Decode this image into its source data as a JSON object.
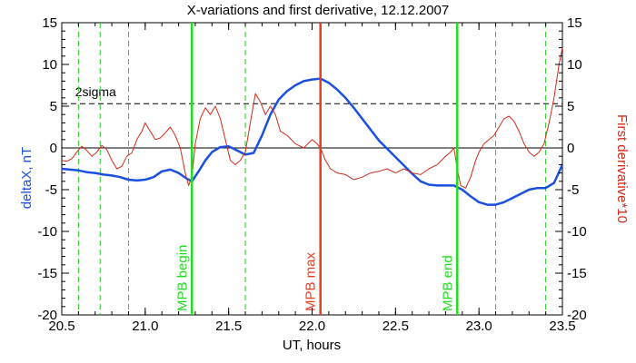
{
  "chart_data": {
    "type": "line",
    "title": "X-variations and first derivative, 12.12.2007",
    "xlabel": "UT, hours",
    "ylabel_left": "deltaX, nT",
    "ylabel_right": "First derivative*10",
    "xlim": [
      20.5,
      23.5
    ],
    "ylim_left": [
      -20,
      15
    ],
    "ylim_right": [
      -20,
      15
    ],
    "xticks": [
      "20.5",
      "21.0",
      "21.5",
      "22.0",
      "22.5",
      "23.0",
      "23.5"
    ],
    "yticks_left": [
      "-20",
      "-15",
      "-10",
      "-5",
      "0",
      "5",
      "10",
      "15"
    ],
    "yticks_right": [
      "-20",
      "-15",
      "-10",
      "-5",
      "0",
      "5",
      "10",
      "15"
    ],
    "colors": {
      "deltaX": "#1a4fe0",
      "derivative": "#d42a1a",
      "mpb": "#22dd22",
      "mpb_max": "#e83c1c",
      "dashed_green": "#22cc22"
    },
    "sigma": {
      "label": "2sigma",
      "value": 5.3
    },
    "markers": [
      {
        "label": "MPB begin",
        "x": 21.28,
        "color": "#22dd22"
      },
      {
        "label": "MPB max",
        "x": 22.05,
        "color": "#e83c1c"
      },
      {
        "label": "MPB end",
        "x": 22.87,
        "color": "#22dd22"
      }
    ],
    "dashed_lines_x": [
      20.6,
      20.73,
      20.9,
      21.6,
      23.1,
      23.4
    ],
    "series": [
      {
        "key": "deltaX",
        "axis": "left",
        "x": [
          20.5,
          20.55,
          20.6,
          20.65,
          20.7,
          20.75,
          20.8,
          20.85,
          20.9,
          20.95,
          21.0,
          21.05,
          21.1,
          21.15,
          21.2,
          21.25,
          21.28,
          21.32,
          21.36,
          21.4,
          21.45,
          21.5,
          21.55,
          21.6,
          21.65,
          21.7,
          21.75,
          21.8,
          21.85,
          21.9,
          21.95,
          22.0,
          22.05,
          22.1,
          22.15,
          22.2,
          22.25,
          22.3,
          22.35,
          22.4,
          22.45,
          22.5,
          22.55,
          22.6,
          22.65,
          22.7,
          22.75,
          22.8,
          22.85,
          22.9,
          22.95,
          23.0,
          23.05,
          23.1,
          23.15,
          23.2,
          23.25,
          23.3,
          23.35,
          23.4,
          23.45,
          23.5
        ],
        "y": [
          -2.5,
          -2.6,
          -2.7,
          -2.9,
          -3.0,
          -3.2,
          -3.3,
          -3.5,
          -3.8,
          -3.9,
          -3.8,
          -3.5,
          -2.8,
          -2.6,
          -3.0,
          -3.7,
          -4.0,
          -2.8,
          -1.5,
          -0.5,
          0.1,
          0.2,
          -0.3,
          -0.8,
          -0.6,
          1.5,
          4.0,
          5.8,
          6.8,
          7.5,
          8.0,
          8.2,
          8.3,
          7.8,
          7.0,
          6.0,
          4.8,
          3.5,
          2.2,
          0.9,
          -0.1,
          -1.1,
          -2.1,
          -3.1,
          -4.0,
          -4.4,
          -4.5,
          -4.5,
          -4.5,
          -5.0,
          -5.8,
          -6.5,
          -6.8,
          -6.8,
          -6.5,
          -6.0,
          -5.5,
          -5.0,
          -4.8,
          -4.8,
          -4.2,
          -2.0
        ]
      },
      {
        "key": "derivative",
        "axis": "right",
        "x": [
          20.5,
          20.53,
          20.56,
          20.59,
          20.62,
          20.65,
          20.68,
          20.71,
          20.74,
          20.77,
          20.8,
          20.83,
          20.86,
          20.89,
          20.92,
          20.95,
          20.98,
          21.0,
          21.03,
          21.06,
          21.09,
          21.12,
          21.15,
          21.18,
          21.21,
          21.24,
          21.26,
          21.28,
          21.3,
          21.33,
          21.36,
          21.39,
          21.42,
          21.45,
          21.48,
          21.51,
          21.54,
          21.57,
          21.6,
          21.63,
          21.66,
          21.69,
          21.72,
          21.75,
          21.78,
          21.81,
          21.85,
          21.9,
          21.95,
          22.0,
          22.03,
          22.05,
          22.08,
          22.11,
          22.15,
          22.2,
          22.25,
          22.3,
          22.35,
          22.4,
          22.45,
          22.5,
          22.55,
          22.6,
          22.65,
          22.7,
          22.75,
          22.8,
          22.83,
          22.85,
          22.87,
          22.89,
          22.92,
          22.95,
          22.98,
          23.0,
          23.03,
          23.06,
          23.09,
          23.12,
          23.15,
          23.18,
          23.21,
          23.24,
          23.27,
          23.3,
          23.33,
          23.36,
          23.39,
          23.42,
          23.45,
          23.48,
          23.5
        ],
        "y": [
          -1.5,
          -1.6,
          -1.3,
          -0.5,
          0.2,
          -0.3,
          -1.0,
          -0.5,
          0.3,
          -0.2,
          -1.5,
          -2.5,
          -2.2,
          -1.0,
          -0.6,
          1.0,
          2.0,
          3.0,
          2.0,
          1.0,
          1.2,
          1.8,
          2.5,
          1.5,
          0.0,
          -3.0,
          -4.5,
          -3.5,
          0.5,
          3.5,
          4.8,
          4.0,
          5.0,
          3.5,
          1.0,
          -1.5,
          -2.0,
          -1.5,
          -0.5,
          3.0,
          6.5,
          5.5,
          4.0,
          5.0,
          4.0,
          2.0,
          1.5,
          0.5,
          0.0,
          1.0,
          0.5,
          0.0,
          -1.5,
          -2.5,
          -3.0,
          -3.2,
          -3.8,
          -3.5,
          -3.0,
          -2.8,
          -2.5,
          -3.0,
          -2.5,
          -3.0,
          -3.2,
          -2.5,
          -2.0,
          -1.0,
          -0.5,
          0.0,
          -2.5,
          -4.5,
          -4.8,
          -3.5,
          -1.5,
          -0.5,
          0.5,
          1.0,
          1.5,
          2.5,
          3.5,
          3.8,
          3.2,
          2.0,
          0.5,
          -0.5,
          -1.0,
          -0.5,
          0.5,
          3.0,
          6.0,
          10.0,
          12.0
        ]
      }
    ]
  }
}
